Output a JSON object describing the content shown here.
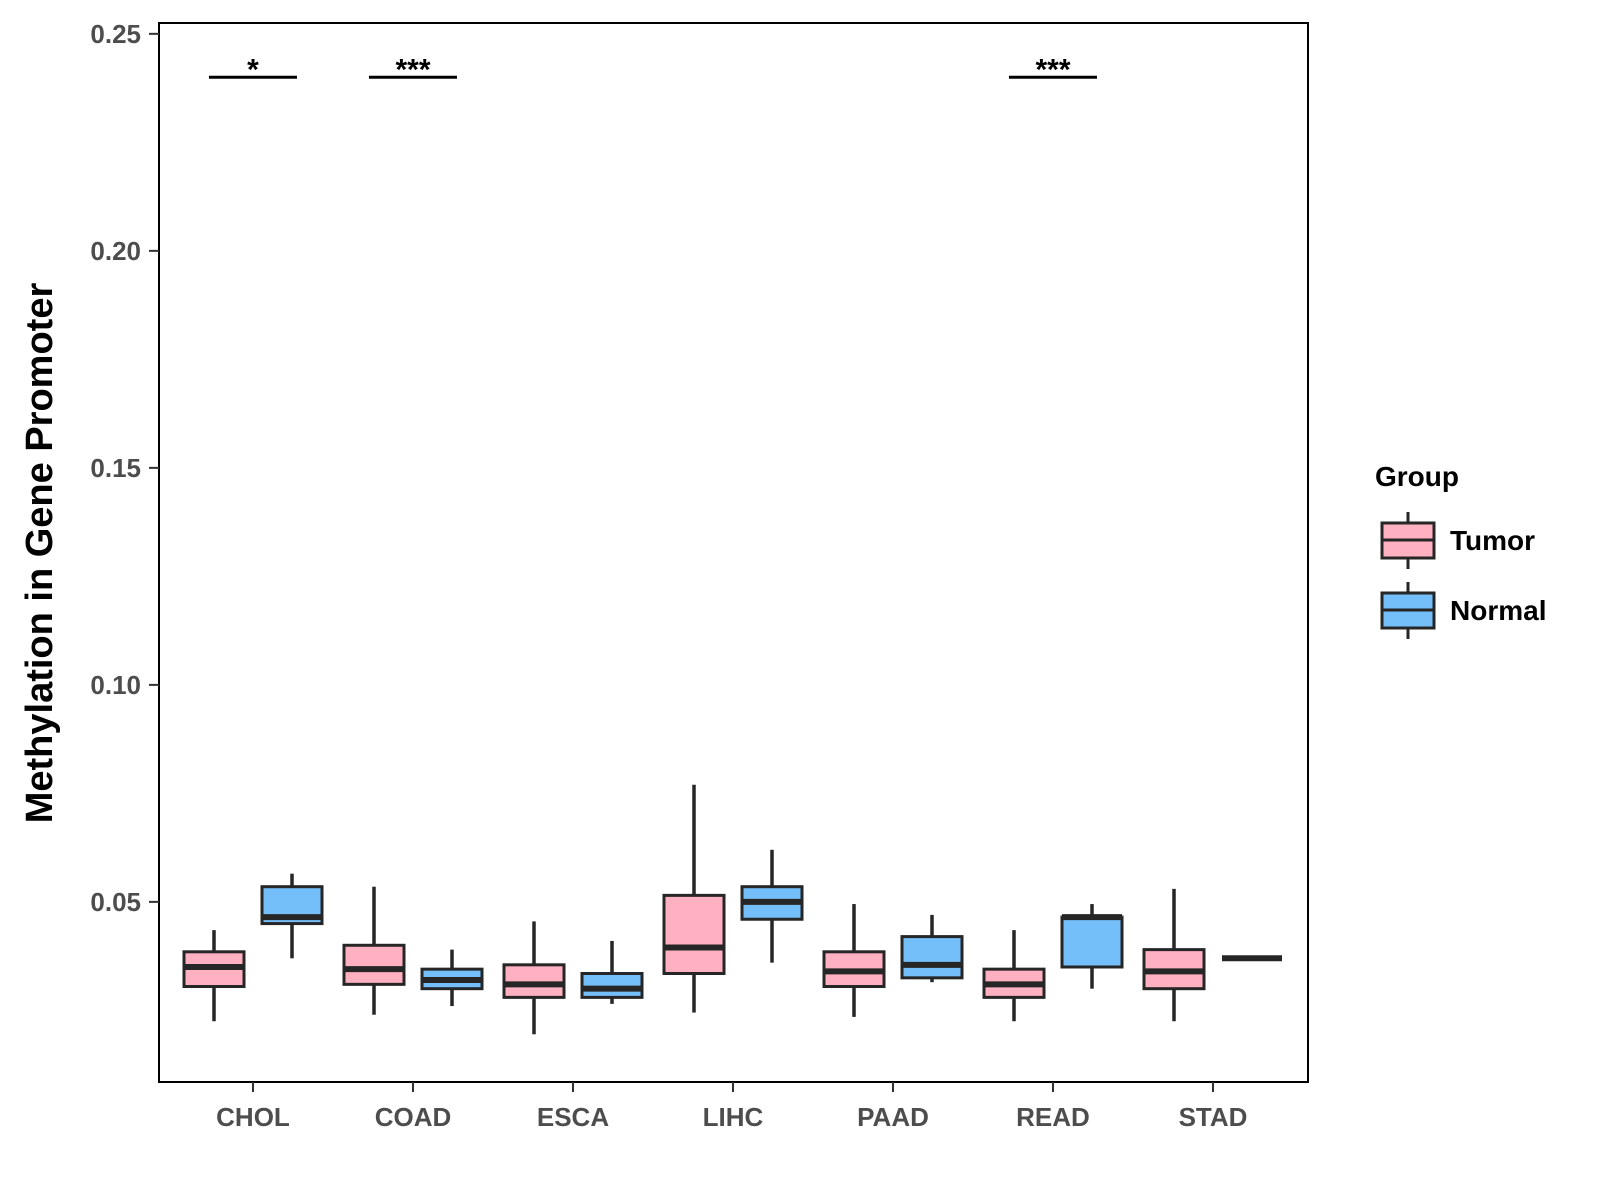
{
  "chart_data": {
    "type": "boxplot",
    "title": "",
    "xlabel": "",
    "ylabel": "Methylation in Gene Promoter",
    "ylim": [
      0.0085,
      0.2525
    ],
    "yticks": [
      0.05,
      0.1,
      0.15,
      0.2,
      0.25
    ],
    "ytick_labels": [
      "0.05",
      "0.10",
      "0.15",
      "0.20",
      "0.25"
    ],
    "categories": [
      "CHOL",
      "COAD",
      "ESCA",
      "LIHC",
      "PAAD",
      "READ",
      "STAD"
    ],
    "grid": false,
    "legend": {
      "title": "Group",
      "position": "right",
      "entries": [
        {
          "name": "Tumor",
          "color": "#FFB0C1"
        },
        {
          "name": "Normal",
          "color": "#74BFFA"
        }
      ]
    },
    "series": [
      {
        "name": "Tumor",
        "color": "#FFB0C1",
        "boxes": [
          {
            "category": "CHOL",
            "whisker_low": 0.0225,
            "q1": 0.0305,
            "median": 0.035,
            "q3": 0.0385,
            "whisker_high": 0.0435
          },
          {
            "category": "COAD",
            "whisker_low": 0.024,
            "q1": 0.031,
            "median": 0.0345,
            "q3": 0.04,
            "whisker_high": 0.0535
          },
          {
            "category": "ESCA",
            "whisker_low": 0.0195,
            "q1": 0.028,
            "median": 0.031,
            "q3": 0.0355,
            "whisker_high": 0.0455
          },
          {
            "category": "LIHC",
            "whisker_low": 0.0245,
            "q1": 0.0335,
            "median": 0.0395,
            "q3": 0.0515,
            "whisker_high": 0.077
          },
          {
            "category": "PAAD",
            "whisker_low": 0.0235,
            "q1": 0.0305,
            "median": 0.034,
            "q3": 0.0385,
            "whisker_high": 0.0495
          },
          {
            "category": "READ",
            "whisker_low": 0.0225,
            "q1": 0.028,
            "median": 0.031,
            "q3": 0.0345,
            "whisker_high": 0.0435
          },
          {
            "category": "STAD",
            "whisker_low": 0.0225,
            "q1": 0.03,
            "median": 0.034,
            "q3": 0.039,
            "whisker_high": 0.053
          }
        ]
      },
      {
        "name": "Normal",
        "color": "#74BFFA",
        "boxes": [
          {
            "category": "CHOL",
            "whisker_low": 0.037,
            "q1": 0.045,
            "median": 0.0465,
            "q3": 0.0535,
            "whisker_high": 0.0565
          },
          {
            "category": "COAD",
            "whisker_low": 0.026,
            "q1": 0.03,
            "median": 0.032,
            "q3": 0.0345,
            "whisker_high": 0.039
          },
          {
            "category": "ESCA",
            "whisker_low": 0.0265,
            "q1": 0.028,
            "median": 0.03,
            "q3": 0.0335,
            "whisker_high": 0.041
          },
          {
            "category": "LIHC",
            "whisker_low": 0.036,
            "q1": 0.046,
            "median": 0.05,
            "q3": 0.0535,
            "whisker_high": 0.062
          },
          {
            "category": "PAAD",
            "whisker_low": 0.0315,
            "q1": 0.0325,
            "median": 0.0355,
            "q3": 0.042,
            "whisker_high": 0.047
          },
          {
            "category": "READ",
            "whisker_low": 0.03,
            "q1": 0.035,
            "median": 0.0465,
            "q3": 0.0465,
            "whisker_high": 0.0495
          },
          {
            "category": "STAD",
            "whisker_low": 0.037,
            "q1": 0.037,
            "median": 0.037,
            "q3": 0.037,
            "whisker_high": 0.037
          }
        ]
      }
    ],
    "annotations": [
      {
        "category": "CHOL",
        "label": "*",
        "y": 0.24
      },
      {
        "category": "COAD",
        "label": "***",
        "y": 0.24
      },
      {
        "category": "READ",
        "label": "***",
        "y": 0.24
      }
    ]
  }
}
